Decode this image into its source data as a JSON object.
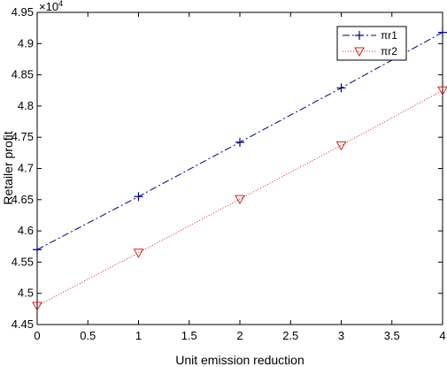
{
  "chart_data": {
    "type": "line",
    "title": "",
    "xlabel": "Unit emission reduction",
    "ylabel": "Retailer profit",
    "y_multiplier_label": "×10",
    "y_multiplier_exponent": "4",
    "xlim": [
      0,
      4
    ],
    "ylim": [
      4.45,
      4.95
    ],
    "x_ticks": [
      0,
      0.5,
      1,
      1.5,
      2,
      2.5,
      3,
      3.5,
      4
    ],
    "x_tick_labels": [
      "0",
      "0.5",
      "1",
      "1.5",
      "2",
      "2.5",
      "3",
      "3.5",
      "4"
    ],
    "y_ticks": [
      4.45,
      4.5,
      4.55,
      4.6,
      4.65,
      4.7,
      4.75,
      4.8,
      4.85,
      4.9,
      4.95
    ],
    "y_tick_labels": [
      "4.45",
      "4.5",
      "4.55",
      "4.6",
      "4.65",
      "4.7",
      "4.75",
      "4.8",
      "4.85",
      "4.9",
      "4.95"
    ],
    "x": [
      0,
      1,
      2,
      3,
      4
    ],
    "grid": false,
    "legend_position": "top-right",
    "series": [
      {
        "name": "πr1",
        "values": [
          4.57,
          4.655,
          4.742,
          4.829,
          4.918
        ],
        "color": "#000080",
        "line_style": "dash-dot",
        "marker": "plus"
      },
      {
        "name": "πr2",
        "values": [
          4.48,
          4.565,
          4.651,
          4.737,
          4.825
        ],
        "color": "#d42020",
        "line_style": "dotted",
        "marker": "triangle-down"
      }
    ]
  }
}
